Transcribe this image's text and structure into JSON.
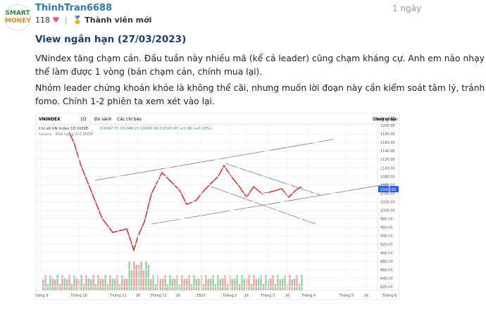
{
  "post": {
    "logo": [
      "SMART",
      "MONEY"
    ],
    "username": "ThinhTran6688",
    "time": "1 ngày",
    "likes": "118",
    "badge": "Thành viên mới",
    "title": "View ngắn hạn (27/03/2023)",
    "paragraphs": [
      [
        "VNindex tăng chạm cản. Đầu tuần này nhiều mã (kể cả leader) cũng chạm kháng cự. Anh em nào nhạy có",
        "thể làm được 1 vòng (bán chạm cản, chính mua lại)."
      ],
      [
        "Nhóm leader chứng khoán khỏe là không thể cãi, nhưng muốn lời đoạn này cần kiểm soát tâm lý, tránh",
        "fomo. Chính 1-2 phiên ta xem xét vào lại."
      ]
    ]
  },
  "chart": {
    "symbol": "VNINDEX",
    "interval": "1D",
    "compare": "Đo sánh",
    "indicators": "Các chỉ báo",
    "guide": "Hướng dẫn",
    "login": "Đăng nhập",
    "legend": "Chỉ số VN Index  1D  HOSE",
    "ohlc": "O1047.78 H1049.29 L1041.99 C1047.05 +1.06 (+0.10%)",
    "volume": "Volume · Khối lượng 646.808M",
    "last_price": "1047.05",
    "yticks": [
      "1200.00",
      "1180.00",
      "1160.00",
      "1140.00",
      "1120.00",
      "1100.00",
      "1080.00",
      "1060.00",
      "1040.00",
      "1020.00",
      "1000.00",
      "980.00",
      "960.00",
      "940.00",
      "920.00",
      "900.00",
      "880.00",
      "860.00",
      "840.00",
      "820.00"
    ],
    "xticks": [
      "Tháng 9",
      "Tháng 10",
      "Tháng 11",
      "16",
      "Tháng 12",
      "16",
      "2023",
      "Tháng 2",
      "16",
      "Tháng 3",
      "16",
      "Tháng 4",
      "Tháng 5",
      "16",
      "Tháng 6"
    ]
  }
}
